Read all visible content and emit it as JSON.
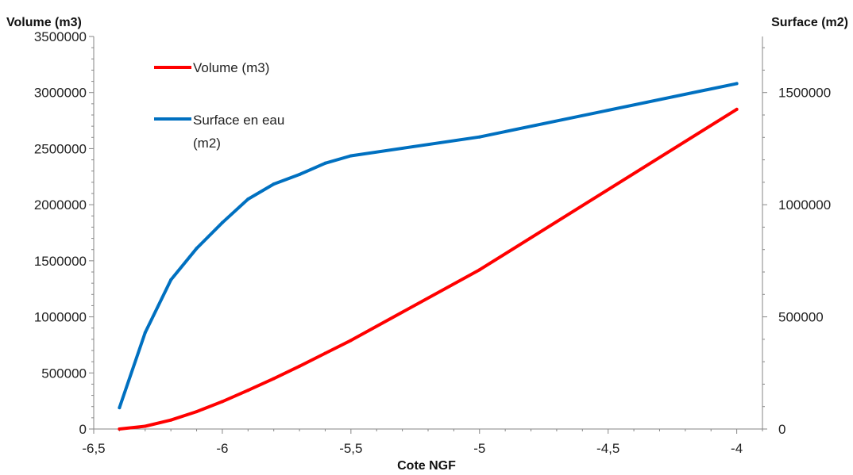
{
  "chart_data": {
    "type": "line",
    "xlabel": "Cote NGF",
    "ylabel_left": "Volume (m3)",
    "ylabel_right": "Surface (m2)",
    "xlim": [
      -6.5,
      -3.9
    ],
    "ylim_left": [
      0,
      3500000
    ],
    "ylim_right": [
      0,
      1750000
    ],
    "x_ticks": [
      {
        "value": -6.5,
        "label": "-6,5"
      },
      {
        "value": -6,
        "label": "-6"
      },
      {
        "value": -5.5,
        "label": "-5,5"
      },
      {
        "value": -5,
        "label": "-5"
      },
      {
        "value": -4.5,
        "label": "-4,5"
      },
      {
        "value": -4,
        "label": "-4"
      }
    ],
    "y_left_ticks": [
      {
        "value": 0,
        "label": "0"
      },
      {
        "value": 500000,
        "label": "500000"
      },
      {
        "value": 1000000,
        "label": "1000000"
      },
      {
        "value": 1500000,
        "label": "1500000"
      },
      {
        "value": 2000000,
        "label": "2000000"
      },
      {
        "value": 2500000,
        "label": "2500000"
      },
      {
        "value": 3000000,
        "label": "3000000"
      },
      {
        "value": 3500000,
        "label": "3500000"
      }
    ],
    "y_right_ticks": [
      {
        "value": 0,
        "label": "0"
      },
      {
        "value": 500000,
        "label": "500000"
      },
      {
        "value": 1000000,
        "label": "1000000"
      },
      {
        "value": 1500000,
        "label": "1500000"
      }
    ],
    "grid": false,
    "legend": {
      "placement": "top-left",
      "entries": [
        "Volume (m3)",
        "Surface en eau",
        "(m2)"
      ]
    },
    "series": [
      {
        "name": "Volume (m3)",
        "axis": "left",
        "color": "#ff0000",
        "x": [
          -6.4,
          -6.3,
          -6.2,
          -6.1,
          -6.0,
          -5.9,
          -5.8,
          -5.7,
          -5.6,
          -5.5,
          -5.0,
          -4.0
        ],
        "values": [
          0,
          25000,
          80000,
          155000,
          245000,
          345000,
          450000,
          560000,
          675000,
          790000,
          1420000,
          2850000
        ]
      },
      {
        "name": "Surface en eau (m2)",
        "axis": "right",
        "color": "#0070c0",
        "x": [
          -6.4,
          -6.3,
          -6.2,
          -6.1,
          -6.0,
          -5.9,
          -5.8,
          -5.7,
          -5.6,
          -5.5,
          -5.0,
          -4.0
        ],
        "values": [
          95000,
          430000,
          665000,
          805000,
          920000,
          1025000,
          1092000,
          1135000,
          1185000,
          1218000,
          1302000,
          1540000
        ]
      }
    ]
  }
}
